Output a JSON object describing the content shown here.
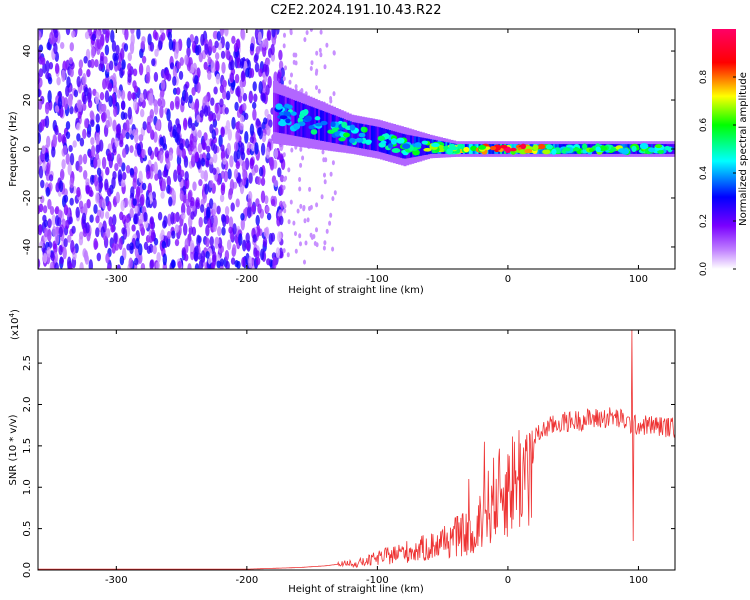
{
  "figure_title": "C2E2.2024.191.10.43.R22",
  "chart_data": [
    {
      "type": "heatmap",
      "title": "",
      "xlabel": "Height of straight line (km)",
      "ylabel": "Frequency (Hz)",
      "xlim": [
        -360,
        128
      ],
      "ylim": [
        -49,
        49
      ],
      "x_ticks": [
        -300,
        -200,
        -100,
        0,
        100
      ],
      "x_tick_labels": [
        "-300",
        "-200",
        "-100",
        "0",
        "100"
      ],
      "y_ticks": [
        -40,
        -20,
        0,
        20,
        40
      ],
      "y_tick_labels": [
        "-40",
        "-20",
        "0",
        "20",
        "40"
      ],
      "colorbar": {
        "label": "Normalized spectral amplitude",
        "range": [
          0.0,
          1.0
        ],
        "ticks": [
          0.0,
          0.2,
          0.4,
          0.6,
          0.8
        ],
        "tick_labels": [
          "0.0",
          "0.2",
          "0.4",
          "0.6",
          "0.8"
        ],
        "colormap": [
          "#ffffff",
          "#8a00ff",
          "#0000ff",
          "#00ffff",
          "#00ff00",
          "#ffff00",
          "#ff0000",
          "#ff0080"
        ]
      },
      "noise_region": {
        "x_range": [
          -360,
          -172
        ],
        "f_range": [
          -49,
          49
        ],
        "amplitude": [
          0.05,
          0.3
        ]
      },
      "signal_track": [
        {
          "x": -180,
          "f_center": 15,
          "f_halfwidth": 8,
          "amplitude": 0.35
        },
        {
          "x": -160,
          "f_center": 12,
          "f_halfwidth": 7,
          "amplitude": 0.45
        },
        {
          "x": -140,
          "f_center": 9,
          "f_halfwidth": 6,
          "amplitude": 0.45
        },
        {
          "x": -120,
          "f_center": 6,
          "f_halfwidth": 5,
          "amplitude": 0.5
        },
        {
          "x": -100,
          "f_center": 4,
          "f_halfwidth": 5,
          "amplitude": 0.5
        },
        {
          "x": -80,
          "f_center": 1,
          "f_halfwidth": 5,
          "amplitude": 0.5
        },
        {
          "x": -60,
          "f_center": 1,
          "f_halfwidth": 3,
          "amplitude": 0.6
        },
        {
          "x": -40,
          "f_center": 0,
          "f_halfwidth": 2,
          "amplitude": 0.65
        },
        {
          "x": -20,
          "f_center": 0,
          "f_halfwidth": 2,
          "amplitude": 0.75
        },
        {
          "x": 0,
          "f_center": 0,
          "f_halfwidth": 2,
          "amplitude": 0.85
        },
        {
          "x": 20,
          "f_center": 0,
          "f_halfwidth": 2,
          "amplitude": 0.8
        },
        {
          "x": 40,
          "f_center": 0,
          "f_halfwidth": 2,
          "amplitude": 0.55
        },
        {
          "x": 60,
          "f_center": 0,
          "f_halfwidth": 2,
          "amplitude": 0.55
        },
        {
          "x": 80,
          "f_center": 0,
          "f_halfwidth": 2,
          "amplitude": 0.6
        },
        {
          "x": 100,
          "f_center": 0,
          "f_halfwidth": 2,
          "amplitude": 0.55
        },
        {
          "x": 128,
          "f_center": 0,
          "f_halfwidth": 2,
          "amplitude": 0.5
        }
      ]
    },
    {
      "type": "line",
      "title": "",
      "xlabel": "Height of straight line (km)",
      "ylabel": "SNR (10 * v/v)",
      "y_multiplier_label": "(x10",
      "y_multiplier_exponent": "4",
      "y_multiplier_close": ")",
      "xlim": [
        -360,
        128
      ],
      "ylim": [
        0,
        2.9
      ],
      "x_ticks": [
        -300,
        -200,
        -100,
        0,
        100
      ],
      "x_tick_labels": [
        "-300",
        "-200",
        "-100",
        "0",
        "100"
      ],
      "y_ticks": [
        0.0,
        0.5,
        1.0,
        1.5,
        2.0,
        2.5
      ],
      "y_tick_labels": [
        "0.0",
        "0.5",
        "1.0",
        "1.5",
        "2.0",
        "2.5"
      ],
      "color": "#ee3333",
      "series": [
        {
          "x": [
            -360,
            -300,
            -250,
            -200,
            -180,
            -160,
            -140,
            -120,
            -110,
            -100,
            -90,
            -80,
            -70,
            -60,
            -50,
            -40,
            -30,
            -25,
            -20,
            -15,
            -10,
            -5,
            0,
            10,
            20,
            30,
            40,
            50,
            60,
            70,
            80,
            90,
            95,
            100,
            110,
            120,
            128
          ],
          "values": [
            0.01,
            0.01,
            0.01,
            0.01,
            0.02,
            0.03,
            0.05,
            0.09,
            0.12,
            0.18,
            0.22,
            0.27,
            0.3,
            0.35,
            0.42,
            0.5,
            0.55,
            0.35,
            0.9,
            0.95,
            1.1,
            1.15,
            1.25,
            1.45,
            1.6,
            1.72,
            1.78,
            1.8,
            1.82,
            1.83,
            1.85,
            1.8,
            1.75,
            1.75,
            1.75,
            1.73,
            1.72
          ]
        }
      ],
      "spike_annotations": [
        {
          "x": -30,
          "peak": 1.1
        },
        {
          "x": -18,
          "peak": 1.55
        },
        {
          "x": 95,
          "peak": 2.9
        },
        {
          "x": 96,
          "low": 0.35
        }
      ]
    }
  ]
}
